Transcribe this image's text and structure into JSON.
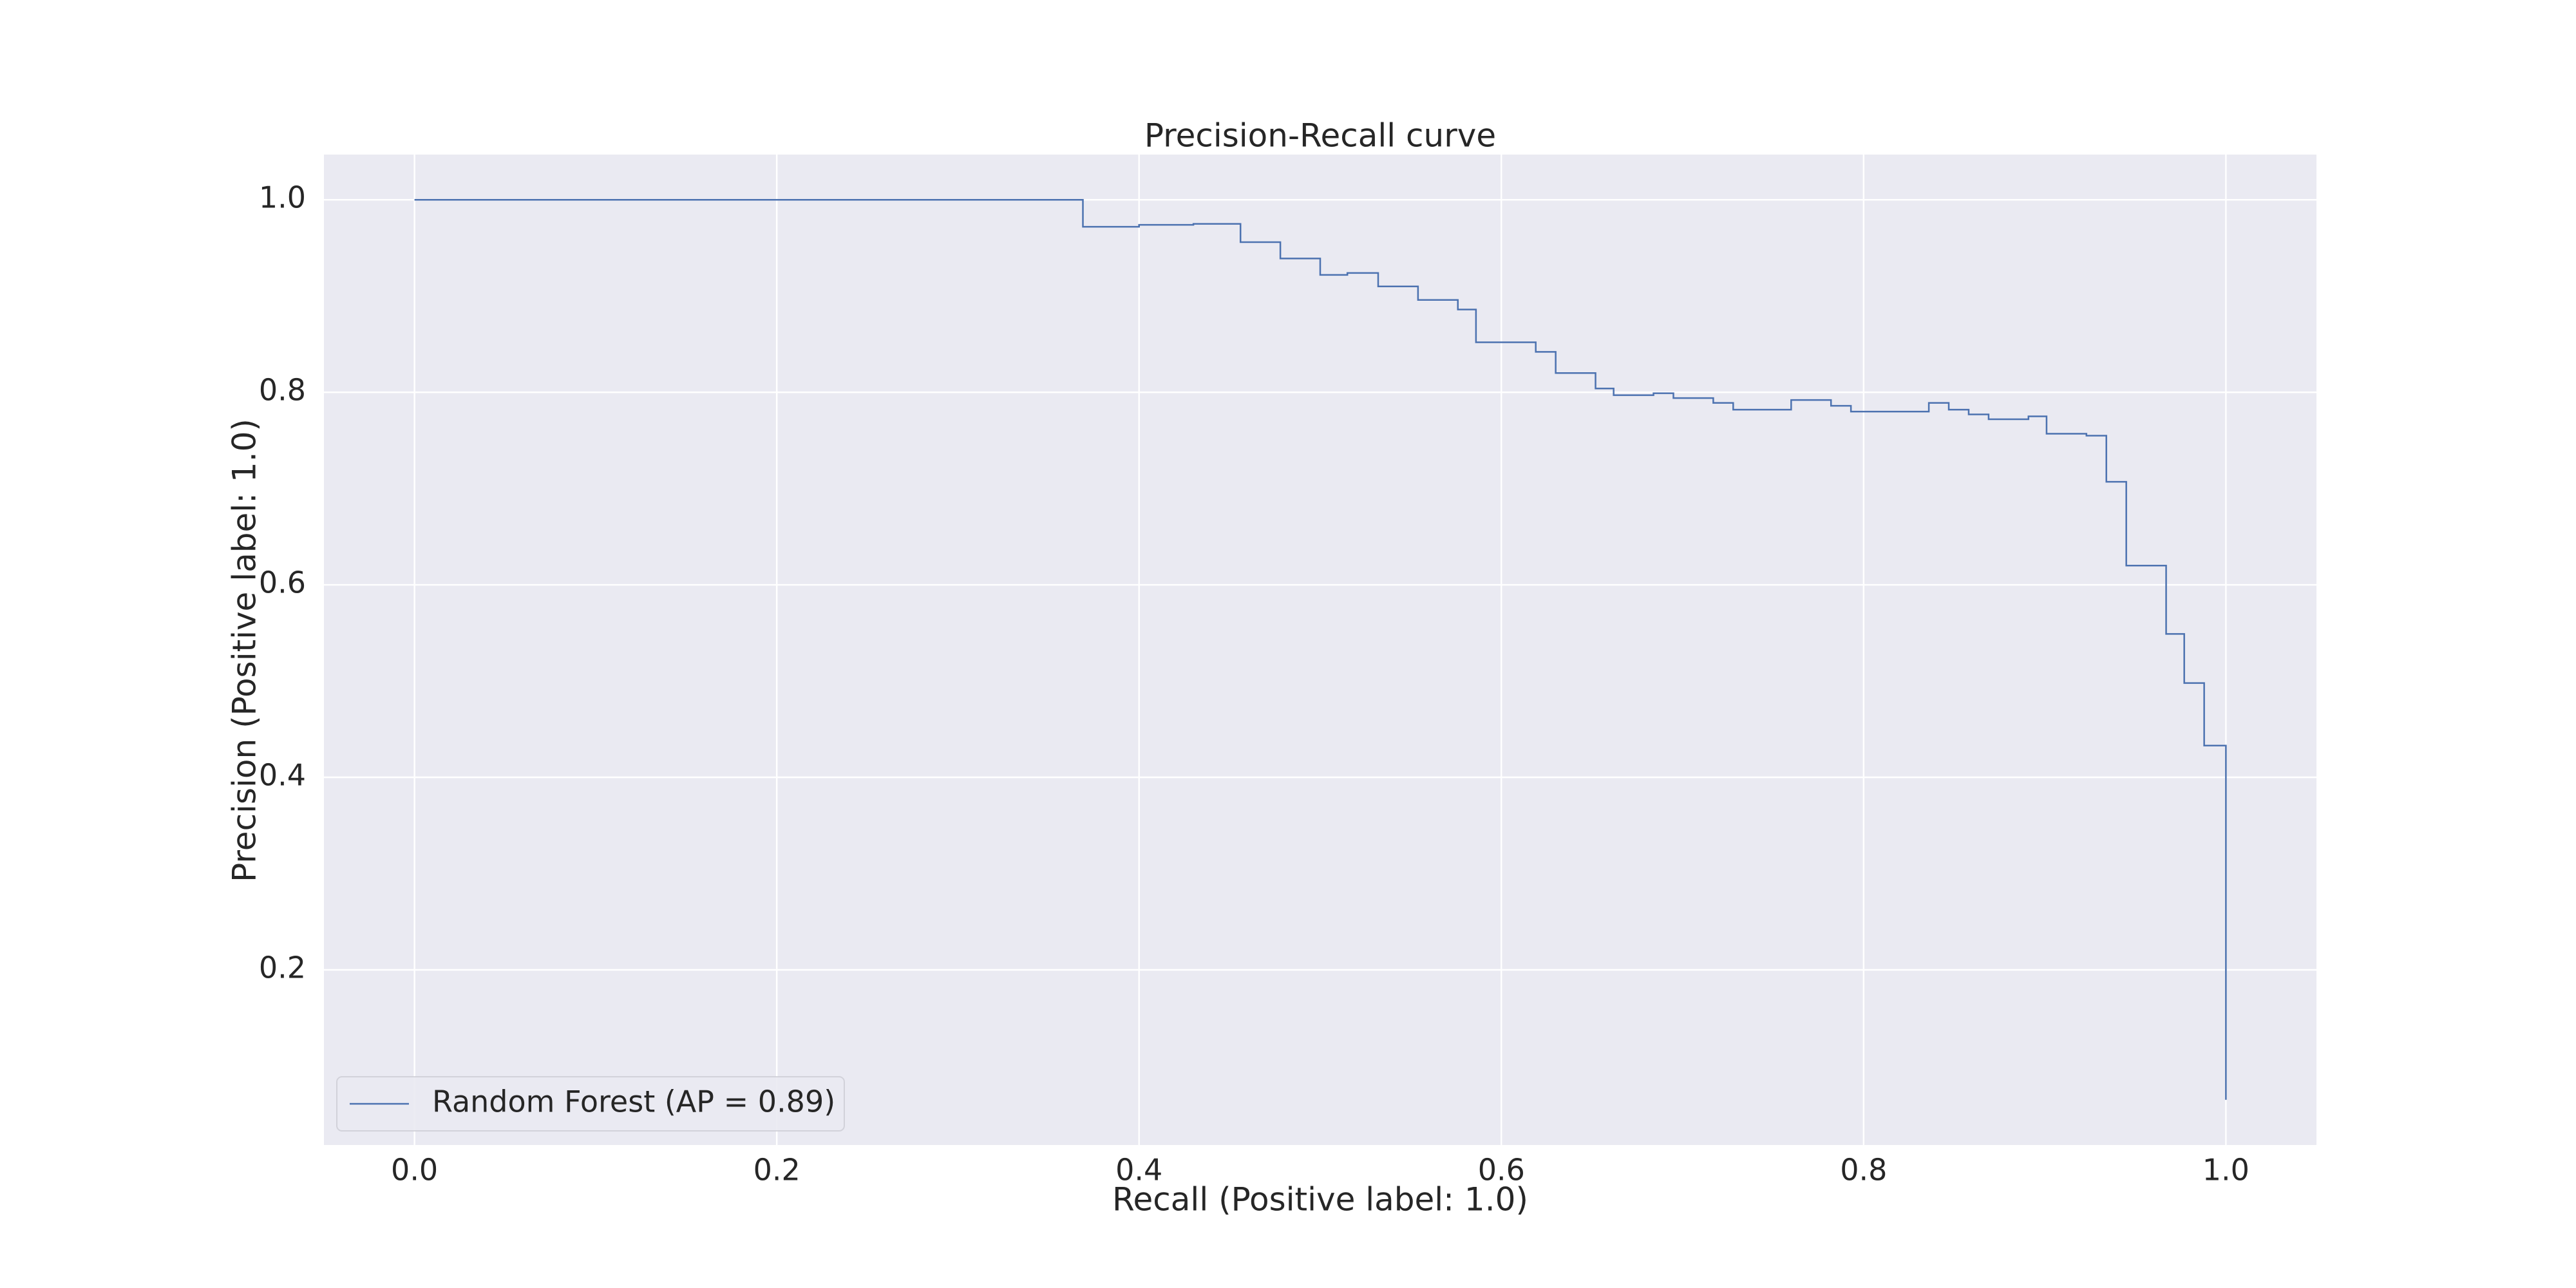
{
  "chart_data": {
    "type": "line",
    "title": "Precision-Recall curve",
    "xlabel": "Recall (Positive label: 1.0)",
    "ylabel": "Precision (Positive label: 1.0)",
    "drawstyle": "steps-post",
    "grid": true,
    "legend_loc": "lower left",
    "xlim": [
      -0.05,
      1.05
    ],
    "ylim": [
      0.018,
      1.047
    ],
    "xticks": [
      {
        "value": 0,
        "label": "0.0"
      },
      0.2,
      0.4,
      0.6,
      0.8,
      {
        "value": 1,
        "label": "1.0"
      }
    ],
    "yticks": [
      0.2,
      0.4,
      0.6,
      0.8,
      {
        "value": 1,
        "label": "1.0"
      }
    ],
    "series": [
      {
        "name": "Random Forest (AP = 0.89)",
        "color": "#4c72b0",
        "x": [
          0,
          0.369,
          0.4,
          0.43,
          0.456,
          0.478,
          0.5,
          0.515,
          0.532,
          0.554,
          0.576,
          0.586,
          0.619,
          0.63,
          0.652,
          0.662,
          0.684,
          0.695,
          0.717,
          0.728,
          0.76,
          0.782,
          0.793,
          0.836,
          0.847,
          0.858,
          0.869,
          0.891,
          0.901,
          0.923,
          0.934,
          0.945,
          0.967,
          0.977,
          0.988,
          1.0
        ],
        "values": [
          1.0,
          0.972,
          0.974,
          0.975,
          0.956,
          0.939,
          0.922,
          0.924,
          0.91,
          0.896,
          0.886,
          0.852,
          0.842,
          0.82,
          0.804,
          0.797,
          0.799,
          0.794,
          0.789,
          0.782,
          0.792,
          0.786,
          0.78,
          0.789,
          0.782,
          0.777,
          0.772,
          0.775,
          0.757,
          0.755,
          0.707,
          0.62,
          0.549,
          0.498,
          0.433,
          0.065
        ]
      }
    ]
  }
}
